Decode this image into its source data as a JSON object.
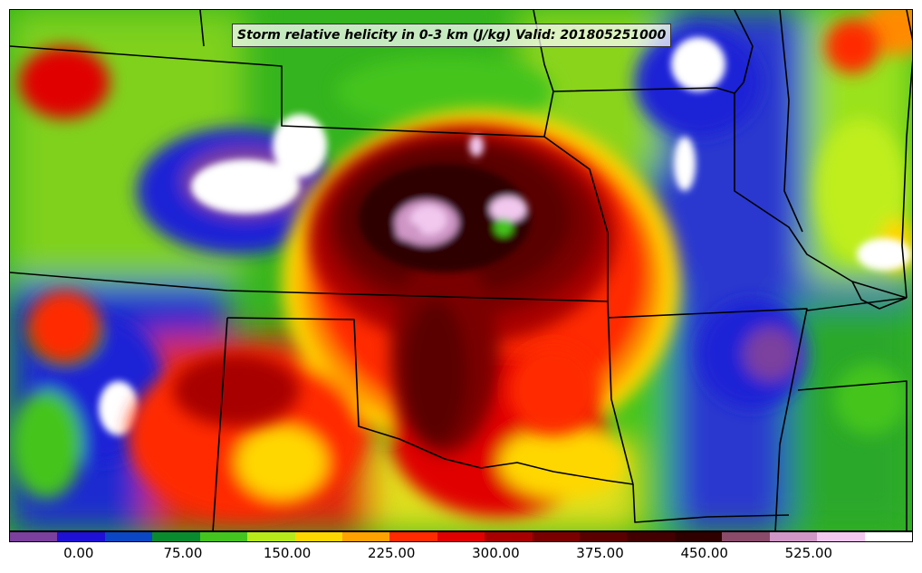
{
  "title": "Storm relative helicity in 0-3 km (J/kg) Valid: 201805251000",
  "colorbar": {
    "colors": [
      "#7b3f9e",
      "#1f10d6",
      "#0b47c4",
      "#0a8a2e",
      "#44c41e",
      "#b8ea1a",
      "#ffd700",
      "#ffa200",
      "#ff2a00",
      "#e00000",
      "#a80000",
      "#7a0000",
      "#5a0000",
      "#420000",
      "#2e0000",
      "#8a4a6a",
      "#cf96c6",
      "#f2c8ef",
      "#ffffff"
    ],
    "tick_labels": [
      "0.00",
      "75.00",
      "150.00",
      "225.00",
      "300.00",
      "375.00",
      "450.00",
      "525.00"
    ],
    "tick_values": [
      0,
      75,
      150,
      225,
      300,
      375,
      450,
      525
    ],
    "range": [
      -50,
      600
    ]
  },
  "icons": {
    "state_boundaries": "state-border-lines"
  }
}
